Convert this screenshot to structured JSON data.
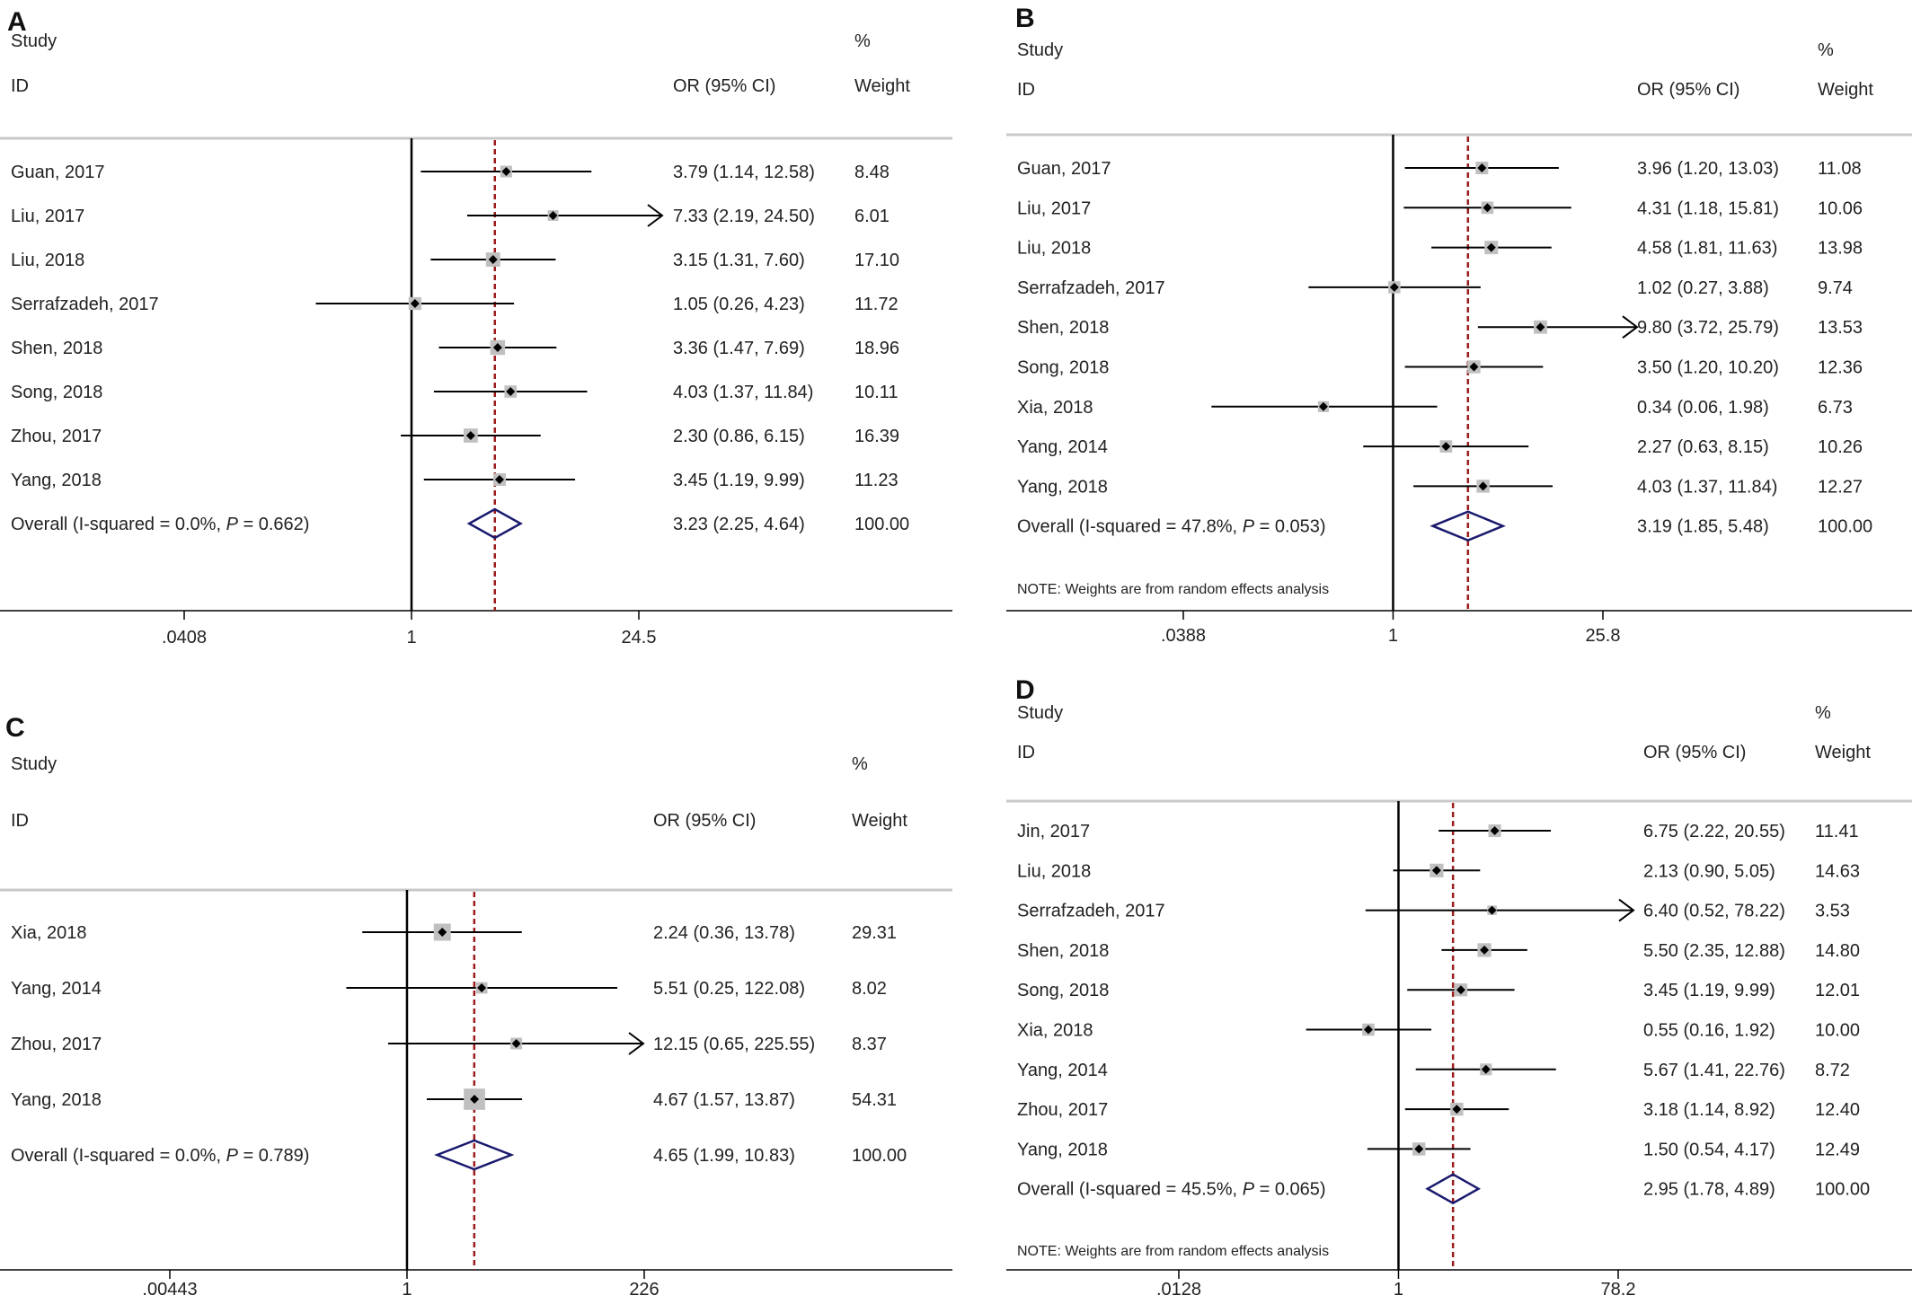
{
  "colors": {
    "text": "#222222",
    "axis": "#000000",
    "separator": "#c8c8c8",
    "weight_box": "#c0c0c0",
    "point": "#000000",
    "overall_diamond": "#1a1a6e",
    "reference_line": "#9b1c1c"
  },
  "chart_data": [
    {
      "panel": "A",
      "type": "forest",
      "header": {
        "study": "Study",
        "id": "ID",
        "estimate": "OR (95% CI)",
        "percent": "%",
        "weight": "Weight"
      },
      "x_scale": "log",
      "x_ticks": [
        {
          "value": 0.0408,
          "label": ".0408"
        },
        {
          "value": 1,
          "label": "1"
        },
        {
          "value": 24.5,
          "label": "24.5"
        }
      ],
      "studies": [
        {
          "label": "Guan, 2017",
          "or": 3.79,
          "lo": 1.14,
          "hi": 12.58,
          "text": "3.79 (1.14, 12.58)",
          "weight": 8.48,
          "weight_text": "8.48"
        },
        {
          "label": "Liu, 2017",
          "or": 7.33,
          "lo": 2.19,
          "hi": 24.5,
          "text": "7.33 (2.19, 24.50)",
          "weight": 6.01,
          "weight_text": "6.01",
          "arrow": true
        },
        {
          "label": "Liu, 2018",
          "or": 3.15,
          "lo": 1.31,
          "hi": 7.6,
          "text": "3.15 (1.31, 7.60)",
          "weight": 17.1,
          "weight_text": "17.10"
        },
        {
          "label": "Serrafzadeh, 2017",
          "or": 1.05,
          "lo": 0.26,
          "hi": 4.23,
          "text": "1.05 (0.26, 4.23)",
          "weight": 11.72,
          "weight_text": "11.72"
        },
        {
          "label": "Shen, 2018",
          "or": 3.36,
          "lo": 1.47,
          "hi": 7.69,
          "text": "3.36 (1.47, 7.69)",
          "weight": 18.96,
          "weight_text": "18.96"
        },
        {
          "label": "Song, 2018",
          "or": 4.03,
          "lo": 1.37,
          "hi": 11.84,
          "text": "4.03 (1.37, 11.84)",
          "weight": 10.11,
          "weight_text": "10.11"
        },
        {
          "label": "Zhou, 2017",
          "or": 2.3,
          "lo": 0.86,
          "hi": 6.15,
          "text": "2.30 (0.86, 6.15)",
          "weight": 16.39,
          "weight_text": "16.39"
        },
        {
          "label": "Yang, 2018",
          "or": 3.45,
          "lo": 1.19,
          "hi": 9.99,
          "text": "3.45 (1.19, 9.99)",
          "weight": 11.23,
          "weight_text": "11.23"
        }
      ],
      "overall": {
        "label_prefix": "Overall  (I-squared = 0.0%, ",
        "label_p": "P",
        "label_suffix": " = 0.662)",
        "or": 3.23,
        "lo": 2.25,
        "hi": 4.64,
        "text": "3.23 (2.25, 4.64)",
        "weight_text": "100.00"
      },
      "note": ""
    },
    {
      "panel": "B",
      "type": "forest",
      "header": {
        "study": "Study",
        "id": "ID",
        "estimate": "OR (95% CI)",
        "percent": "%",
        "weight": "Weight"
      },
      "x_scale": "log",
      "x_ticks": [
        {
          "value": 0.0388,
          "label": ".0388"
        },
        {
          "value": 1,
          "label": "1"
        },
        {
          "value": 25.8,
          "label": "25.8"
        }
      ],
      "studies": [
        {
          "label": "Guan, 2017",
          "or": 3.96,
          "lo": 1.2,
          "hi": 13.03,
          "text": "3.96 (1.20, 13.03)",
          "weight": 11.08,
          "weight_text": "11.08"
        },
        {
          "label": "Liu, 2017",
          "or": 4.31,
          "lo": 1.18,
          "hi": 15.81,
          "text": "4.31 (1.18, 15.81)",
          "weight": 10.06,
          "weight_text": "10.06"
        },
        {
          "label": "Liu, 2018",
          "or": 4.58,
          "lo": 1.81,
          "hi": 11.63,
          "text": "4.58 (1.81, 11.63)",
          "weight": 13.98,
          "weight_text": "13.98"
        },
        {
          "label": "Serrafzadeh, 2017",
          "or": 1.02,
          "lo": 0.27,
          "hi": 3.88,
          "text": "1.02 (0.27, 3.88)",
          "weight": 9.74,
          "weight_text": "9.74"
        },
        {
          "label": "Shen, 2018",
          "or": 9.8,
          "lo": 3.72,
          "hi": 25.79,
          "text": "9.80 (3.72, 25.79)",
          "weight": 13.53,
          "weight_text": "13.53",
          "arrow": true
        },
        {
          "label": "Song, 2018",
          "or": 3.5,
          "lo": 1.2,
          "hi": 10.2,
          "text": "3.50 (1.20, 10.20)",
          "weight": 12.36,
          "weight_text": "12.36"
        },
        {
          "label": "Xia, 2018",
          "or": 0.34,
          "lo": 0.06,
          "hi": 1.98,
          "text": "0.34 (0.06, 1.98)",
          "weight": 6.73,
          "weight_text": "6.73"
        },
        {
          "label": "Yang, 2014",
          "or": 2.27,
          "lo": 0.63,
          "hi": 8.15,
          "text": "2.27 (0.63, 8.15)",
          "weight": 10.26,
          "weight_text": "10.26"
        },
        {
          "label": "Yang, 2018",
          "or": 4.03,
          "lo": 1.37,
          "hi": 11.84,
          "text": "4.03 (1.37, 11.84)",
          "weight": 12.27,
          "weight_text": "12.27"
        }
      ],
      "overall": {
        "label_prefix": "Overall  (I-squared = 47.8%, ",
        "label_p": "P",
        "label_suffix": " = 0.053)",
        "or": 3.19,
        "lo": 1.85,
        "hi": 5.48,
        "text": "3.19 (1.85, 5.48)",
        "weight_text": "100.00"
      },
      "note": "NOTE: Weights are from random effects analysis"
    },
    {
      "panel": "C",
      "type": "forest",
      "header": {
        "study": "Study",
        "id": "ID",
        "estimate": "OR (95% CI)",
        "percent": "%",
        "weight": "Weight"
      },
      "x_scale": "log",
      "x_ticks": [
        {
          "value": 0.00443,
          "label": ".00443"
        },
        {
          "value": 1,
          "label": "1"
        },
        {
          "value": 226,
          "label": "226"
        }
      ],
      "studies": [
        {
          "label": "Xia, 2018",
          "or": 2.24,
          "lo": 0.36,
          "hi": 13.78,
          "text": "2.24 (0.36, 13.78)",
          "weight": 29.31,
          "weight_text": "29.31"
        },
        {
          "label": "Yang, 2014",
          "or": 5.51,
          "lo": 0.25,
          "hi": 122.08,
          "text": "5.51 (0.25, 122.08)",
          "weight": 8.02,
          "weight_text": "8.02"
        },
        {
          "label": "Zhou, 2017",
          "or": 12.15,
          "lo": 0.65,
          "hi": 225.55,
          "text": "12.15 (0.65, 225.55)",
          "weight": 8.37,
          "weight_text": "8.37",
          "arrow": true
        },
        {
          "label": "Yang, 2018",
          "or": 4.67,
          "lo": 1.57,
          "hi": 13.87,
          "text": "4.67 (1.57, 13.87)",
          "weight": 54.31,
          "weight_text": "54.31"
        }
      ],
      "overall": {
        "label_prefix": "Overall  (I-squared = 0.0%, ",
        "label_p": "P",
        "label_suffix": " = 0.789)",
        "or": 4.65,
        "lo": 1.99,
        "hi": 10.83,
        "text": "4.65 (1.99, 10.83)",
        "weight_text": "100.00"
      },
      "note": ""
    },
    {
      "panel": "D",
      "type": "forest",
      "header": {
        "study": "Study",
        "id": "ID",
        "estimate": "OR (95% CI)",
        "percent": "%",
        "weight": "Weight"
      },
      "x_scale": "log",
      "x_ticks": [
        {
          "value": 0.0128,
          "label": ".0128"
        },
        {
          "value": 1,
          "label": "1"
        },
        {
          "value": 78.2,
          "label": "78.2"
        }
      ],
      "studies": [
        {
          "label": "Jin, 2017",
          "or": 6.75,
          "lo": 2.22,
          "hi": 20.55,
          "text": "6.75 (2.22, 20.55)",
          "weight": 11.41,
          "weight_text": "11.41"
        },
        {
          "label": "Liu, 2018",
          "or": 2.13,
          "lo": 0.9,
          "hi": 5.05,
          "text": "2.13 (0.90, 5.05)",
          "weight": 14.63,
          "weight_text": "14.63"
        },
        {
          "label": "Serrafzadeh, 2017",
          "or": 6.4,
          "lo": 0.52,
          "hi": 78.22,
          "text": "6.40 (0.52, 78.22)",
          "weight": 3.53,
          "weight_text": "3.53",
          "arrow": true
        },
        {
          "label": "Shen, 2018",
          "or": 5.5,
          "lo": 2.35,
          "hi": 12.88,
          "text": "5.50 (2.35, 12.88)",
          "weight": 14.8,
          "weight_text": "14.80"
        },
        {
          "label": "Song, 2018",
          "or": 3.45,
          "lo": 1.19,
          "hi": 9.99,
          "text": "3.45 (1.19, 9.99)",
          "weight": 12.01,
          "weight_text": "12.01"
        },
        {
          "label": "Xia, 2018",
          "or": 0.55,
          "lo": 0.16,
          "hi": 1.92,
          "text": "0.55 (0.16, 1.92)",
          "weight": 10.0,
          "weight_text": "10.00"
        },
        {
          "label": "Yang, 2014",
          "or": 5.67,
          "lo": 1.41,
          "hi": 22.76,
          "text": "5.67 (1.41, 22.76)",
          "weight": 8.72,
          "weight_text": "8.72"
        },
        {
          "label": "Zhou, 2017",
          "or": 3.18,
          "lo": 1.14,
          "hi": 8.92,
          "text": "3.18 (1.14, 8.92)",
          "weight": 12.4,
          "weight_text": "12.40"
        },
        {
          "label": "Yang, 2018",
          "or": 1.5,
          "lo": 0.54,
          "hi": 4.17,
          "text": "1.50 (0.54, 4.17)",
          "weight": 12.49,
          "weight_text": "12.49"
        }
      ],
      "overall": {
        "label_prefix": "Overall  (I-squared = 45.5%, ",
        "label_p": "P",
        "label_suffix": " = 0.065)",
        "or": 2.95,
        "lo": 1.78,
        "hi": 4.89,
        "text": "2.95 (1.78, 4.89)",
        "weight_text": "100.00"
      },
      "note": "NOTE: Weights are from random effects analysis"
    }
  ]
}
